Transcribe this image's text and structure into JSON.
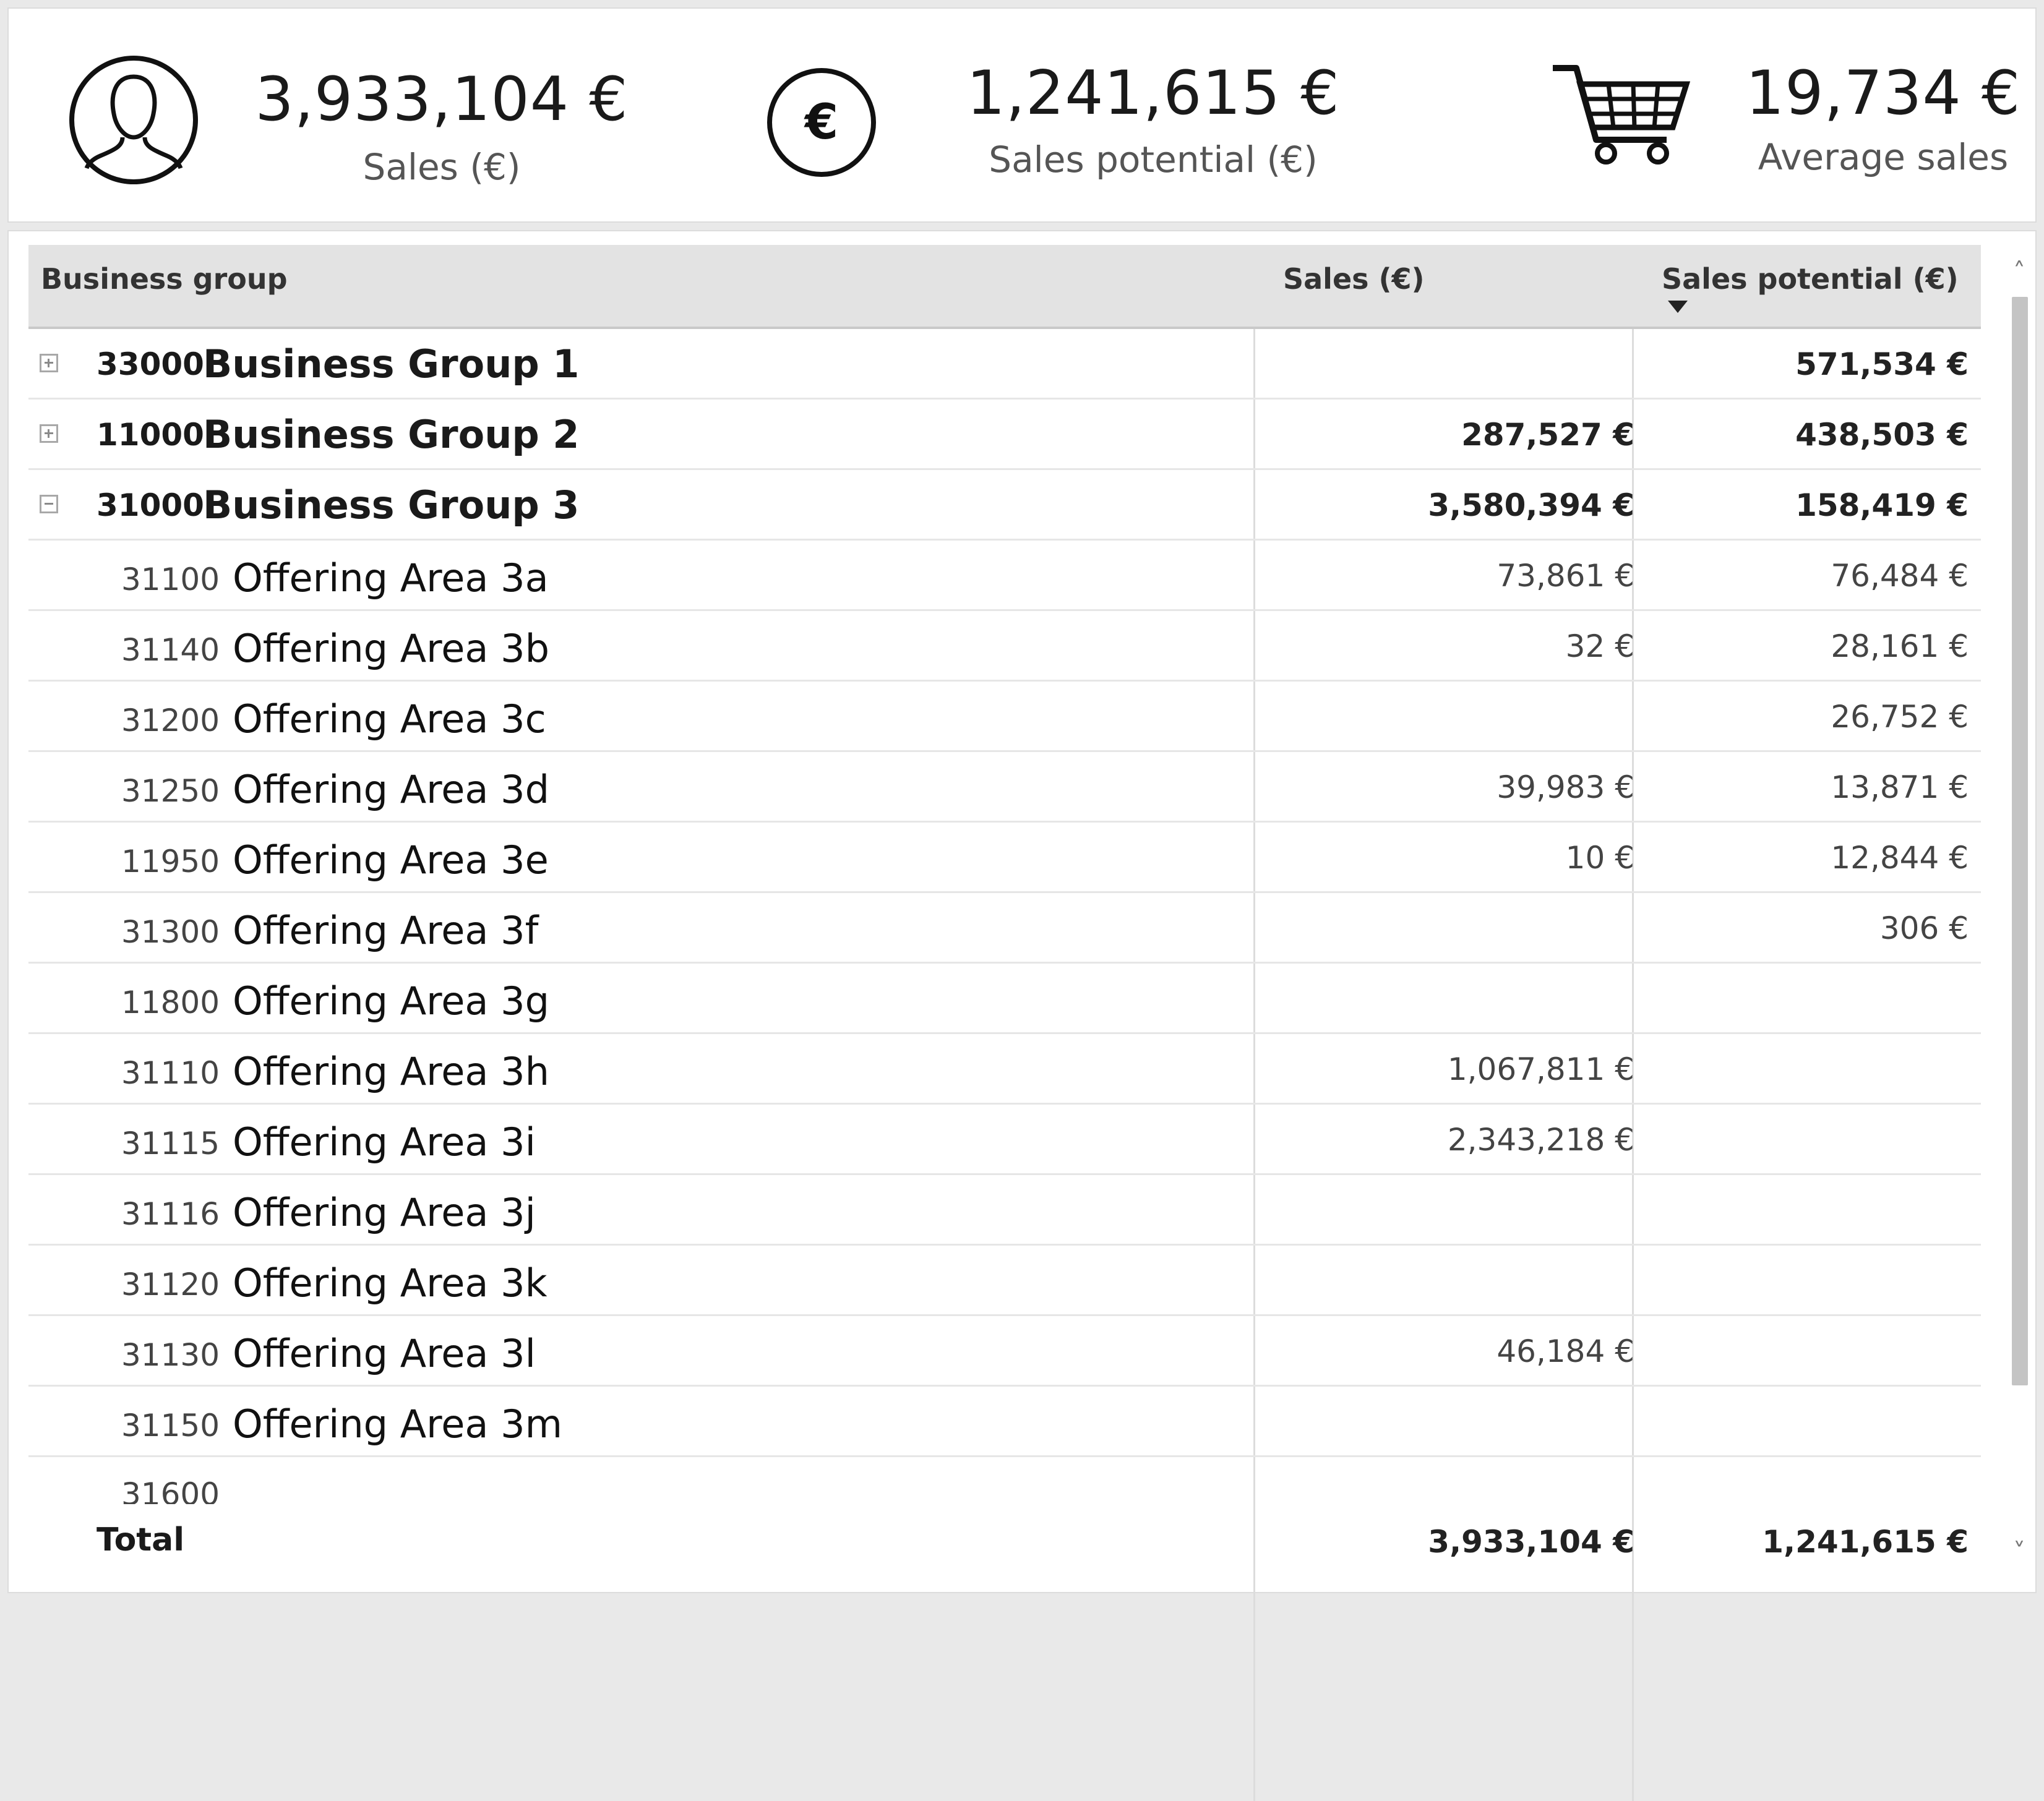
{
  "kpis": [
    {
      "icon": "person-icon",
      "value": "3,933,104 €",
      "label": "Sales (€)"
    },
    {
      "icon": "euro-icon",
      "value": "1,241,615 €",
      "label": "Sales potential (€)"
    },
    {
      "icon": "shopping-cart-icon",
      "value": "19,734 €",
      "label": "Average sales"
    }
  ],
  "table": {
    "headers": {
      "group": "Business group",
      "sales": "Sales (€)",
      "potential": "Sales potential (€)"
    },
    "sort": {
      "column": "potential",
      "direction": "descending"
    },
    "groups": [
      {
        "code": "33000",
        "name": "Business Group 1",
        "expanded": false,
        "sales": "",
        "potential": "571,534 €"
      },
      {
        "code": "11000",
        "name": "Business Group 2",
        "expanded": false,
        "sales": "287,527 €",
        "potential": "438,503 €"
      },
      {
        "code": "31000",
        "name": "Business Group 3",
        "expanded": true,
        "sales": "3,580,394 €",
        "potential": "158,419 €"
      }
    ],
    "sub_rows": [
      {
        "code": "31100",
        "name": "Offering Area 3a",
        "sales": "73,861 €",
        "potential": "76,484 €"
      },
      {
        "code": "31140",
        "name": "Offering Area 3b",
        "sales": "32 €",
        "potential": "28,161 €"
      },
      {
        "code": "31200",
        "name": "Offering Area 3c",
        "sales": "",
        "potential": "26,752 €"
      },
      {
        "code": "31250",
        "name": "Offering Area 3d",
        "sales": "39,983 €",
        "potential": "13,871 €"
      },
      {
        "code": "11950",
        "name": "Offering Area 3e",
        "sales": "10 €",
        "potential": "12,844 €"
      },
      {
        "code": "31300",
        "name": "Offering Area 3f",
        "sales": "",
        "potential": "306 €"
      },
      {
        "code": "11800",
        "name": "Offering Area 3g",
        "sales": "",
        "potential": ""
      },
      {
        "code": "31110",
        "name": "Offering Area 3h",
        "sales": "1,067,811 €",
        "potential": ""
      },
      {
        "code": "31115",
        "name": "Offering Area 3i",
        "sales": "2,343,218 €",
        "potential": ""
      },
      {
        "code": "31116",
        "name": "Offering Area 3j",
        "sales": "",
        "potential": ""
      },
      {
        "code": "31120",
        "name": "Offering Area 3k",
        "sales": "",
        "potential": ""
      },
      {
        "code": "31130",
        "name": "Offering Area 3l",
        "sales": "46,184 €",
        "potential": ""
      },
      {
        "code": "31150",
        "name": "Offering Area 3m",
        "sales": "",
        "potential": ""
      }
    ],
    "partial_row_code": "31600",
    "total": {
      "label": "Total",
      "sales": "3,933,104 €",
      "potential": "1,241,615 €"
    }
  },
  "scrollbar": {
    "up_glyph": "˄",
    "down_glyph": "˅"
  }
}
